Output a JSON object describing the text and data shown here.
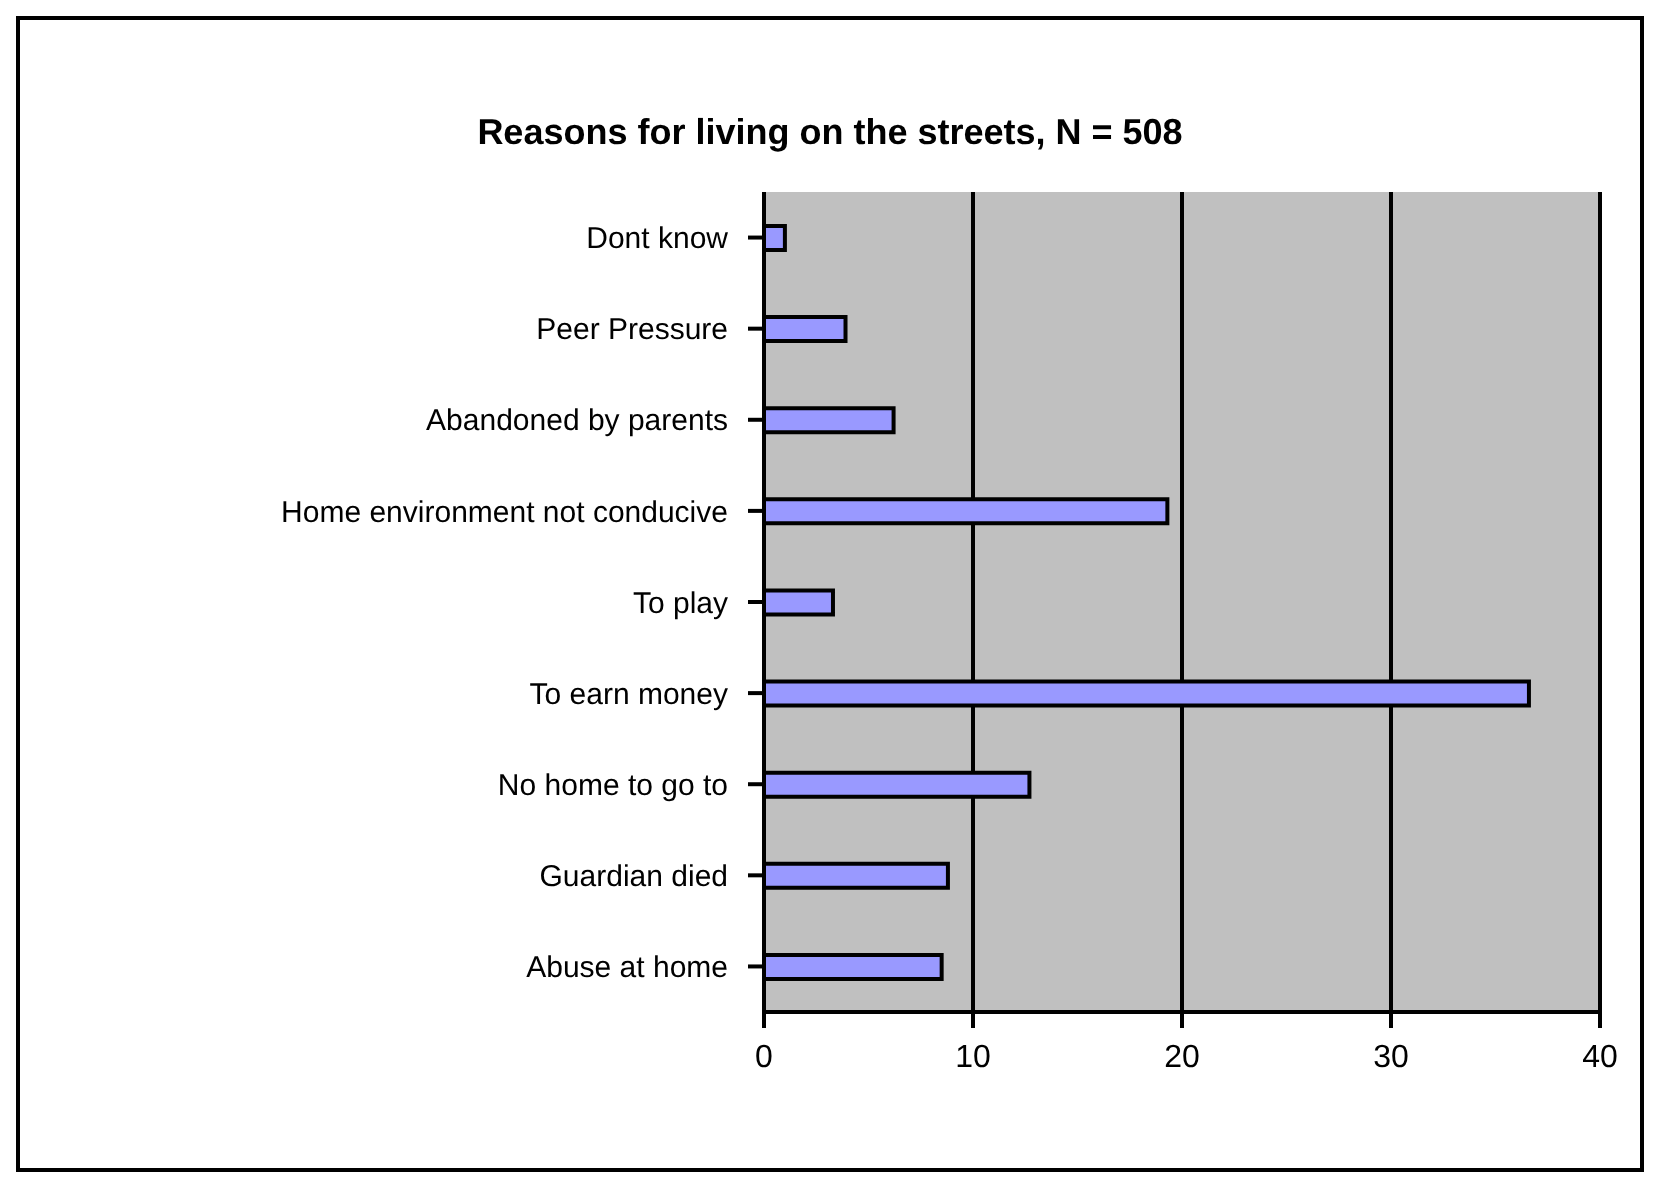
{
  "chart_data": {
    "type": "bar",
    "orientation": "horizontal",
    "title": "Reasons for living on the streets, N = 508",
    "categories": [
      "Dont know",
      "Peer Pressure",
      "Abandoned by parents",
      "Home environment not conducive",
      "To play",
      "To earn money",
      "No home to go to",
      "Guardian died",
      "Abuse at home"
    ],
    "values": [
      1.0,
      3.9,
      6.2,
      19.3,
      3.3,
      36.6,
      12.7,
      8.8,
      8.5
    ],
    "color": "#9999ff",
    "xlim": [
      0,
      40
    ],
    "xticks": [
      0,
      10,
      20,
      30,
      40
    ],
    "grid": "x"
  }
}
